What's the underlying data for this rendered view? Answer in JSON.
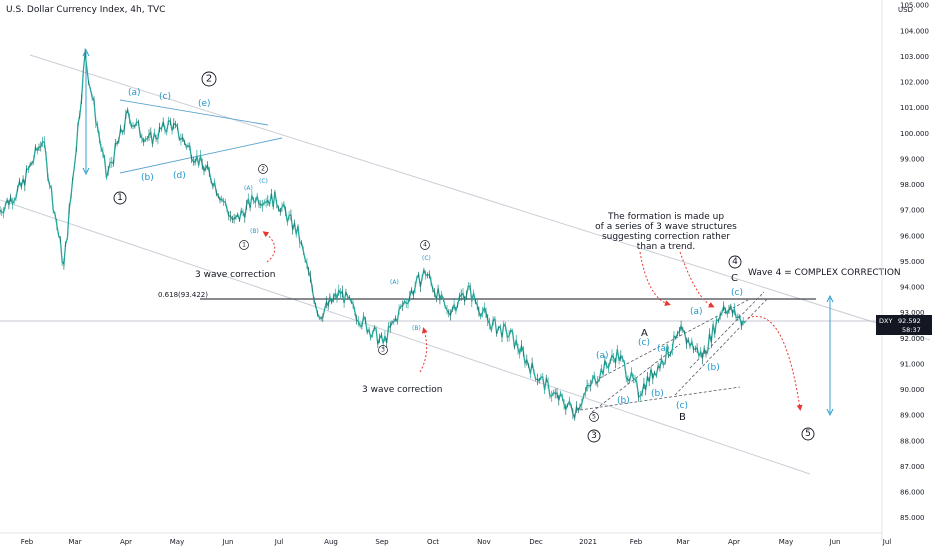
{
  "header": {
    "title": "U.S. Dollar Currency Index, 4h, TVC"
  },
  "price_axis": {
    "currency": "USD",
    "ticks": [
      "105.000",
      "104.000",
      "103.000",
      "102.000",
      "101.000",
      "100.000",
      "99.000",
      "98.000",
      "97.000",
      "96.000",
      "95.000",
      "94.000",
      "93.000",
      "92.000",
      "91.000",
      "90.000",
      "89.000",
      "88.000",
      "87.000",
      "86.000",
      "85.000"
    ],
    "last_label": "DXY",
    "last_price": "92.592",
    "countdown": "58:37"
  },
  "time_axis": {
    "ticks": [
      "Feb",
      "Mar",
      "Apr",
      "May",
      "Jun",
      "Jul",
      "Aug",
      "Sep",
      "Oct",
      "Nov",
      "Dec",
      "2021",
      "Feb",
      "Mar",
      "Apr",
      "May",
      "Jun",
      "Jul"
    ]
  },
  "fib_label": "0.618(93.422)",
  "annotations": {
    "formation_note": [
      "The formation is made up",
      "of a series of 3 wave structures",
      "suggesting correction rather",
      "than a trend."
    ],
    "wave4_note": "Wave 4 = COMPLEX CORRECTION",
    "three_wave_1": "3 wave correction",
    "three_wave_2": "3 wave correction"
  },
  "wave_labels": {
    "circled_major": [
      "1",
      "2",
      "3",
      "4",
      "5"
    ],
    "circled_minor": [
      "1",
      "2",
      "3",
      "4",
      "5"
    ],
    "letters_black": [
      "A",
      "B",
      "C"
    ],
    "blue": [
      "(a)",
      "(b)",
      "(c)",
      "(d)",
      "(e)",
      "(A)",
      "(B)",
      "(C)",
      "(a)",
      "(b)",
      "(c)",
      "(a)",
      "(b)",
      "(c)",
      "(a)",
      "(b)",
      "(c)",
      "(A)",
      "(B)",
      "(C)"
    ]
  },
  "colors": {
    "candle": "#26a69a",
    "candle_dark": "#131722",
    "blue_label": "#2196c9",
    "arrow_red": "#e53935",
    "trendline": "#b0b8c4",
    "price_tag_bg": "#131722"
  },
  "chart_data": {
    "type": "line",
    "title": "U.S. Dollar Currency Index, 4h, TVC",
    "xlabel": "",
    "ylabel": "USD",
    "ylim": [
      84.6,
      105.2
    ],
    "fib_level": 93.422,
    "last_price": 92.592,
    "series": [
      {
        "x": [
          "Jan 2020",
          "Feb 1",
          "Feb 20",
          "Mar 9",
          "Mar 19",
          "Mar 27",
          "Apr 6",
          "Apr 20",
          "May 5",
          "May 15",
          "Jun 1",
          "Jun 10",
          "Jun 20",
          "Jul 1",
          "Jul 15",
          "Aug 1",
          "Aug 10",
          "Aug 20",
          "Sep 1",
          "Sep 10",
          "Sep 25",
          "Oct 10",
          "Oct 25",
          "Nov 4",
          "Nov 20",
          "Dec 4",
          "Dec 17",
          "Jan 6 2021",
          "Jan 20",
          "Feb 5",
          "Feb 15",
          "Feb 25",
          "Mar 8",
          "Mar 15",
          "Mar 31",
          "Apr 6"
        ],
        "values": [
          97.0,
          97.9,
          99.8,
          94.8,
          103.0,
          98.3,
          100.7,
          99.7,
          100.4,
          99.3,
          98.2,
          96.5,
          97.5,
          97.4,
          96.1,
          92.9,
          93.8,
          92.7,
          91.8,
          93.4,
          94.6,
          93.0,
          93.9,
          92.6,
          92.1,
          90.8,
          89.8,
          89.2,
          90.5,
          91.4,
          89.9,
          91.0,
          92.2,
          91.3,
          93.3,
          92.6
        ]
      }
    ]
  }
}
